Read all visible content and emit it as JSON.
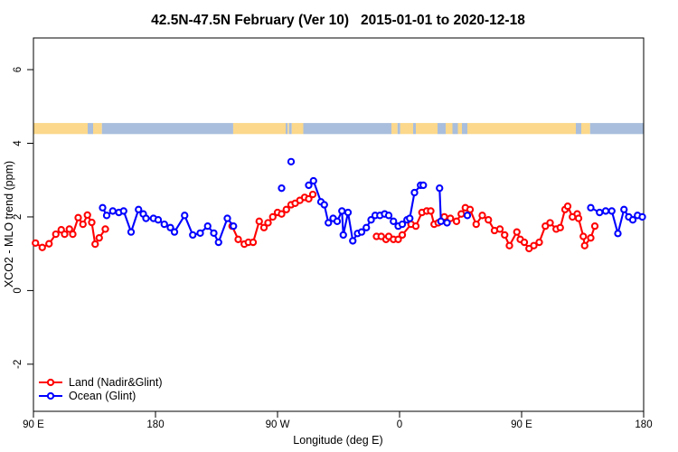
{
  "header": {
    "title_region": "42.5N-47.5N February (Ver 10)",
    "title_dates": "2015-01-01 to 2020-12-18"
  },
  "chart_data": {
    "type": "scatter",
    "title": "42.5N-47.5N February (Ver 10)  2015-01-01 to 2020-12-18",
    "xlabel": "Longitude (deg E)",
    "ylabel": "XCO2 - MLO trend (ppm)",
    "x_axis": {
      "min": 90,
      "max": 540,
      "note": "longitude axis wraps eastward from 90E through 180, 90W, 0, 90E to 180",
      "ticks": [
        {
          "pos": 90,
          "label": "90 E"
        },
        {
          "pos": 180,
          "label": "180"
        },
        {
          "pos": 270,
          "label": "90 W"
        },
        {
          "pos": 360,
          "label": "0"
        },
        {
          "pos": 450,
          "label": "90 E"
        },
        {
          "pos": 540,
          "label": "180"
        }
      ]
    },
    "y_axis": {
      "min": -3.28,
      "max": 6.86,
      "ticks": [
        {
          "pos": -2,
          "label": "-2"
        },
        {
          "pos": 0,
          "label": "0"
        },
        {
          "pos": 2,
          "label": "2"
        },
        {
          "pos": 4,
          "label": "4"
        },
        {
          "pos": 6,
          "label": "6"
        }
      ]
    },
    "grid": "off",
    "legend_position": "bottom-left",
    "map_strip": {
      "value_low": 4.25,
      "value_high": 4.55,
      "land_color": "#FBD88B",
      "ocean_color": "#A9BEDC",
      "segments": [
        {
          "from": 90,
          "to": 130,
          "type": "land"
        },
        {
          "from": 130,
          "to": 134,
          "type": "ocean"
        },
        {
          "from": 134,
          "to": 140.5,
          "type": "land"
        },
        {
          "from": 140.5,
          "to": 237.3,
          "type": "ocean"
        },
        {
          "from": 237.3,
          "to": 276,
          "type": "land"
        },
        {
          "from": 276,
          "to": 277.5,
          "type": "ocean"
        },
        {
          "from": 277.5,
          "to": 278.5,
          "type": "land"
        },
        {
          "from": 278.5,
          "to": 280.5,
          "type": "ocean"
        },
        {
          "from": 280.5,
          "to": 289,
          "type": "land"
        },
        {
          "from": 289,
          "to": 354,
          "type": "ocean"
        },
        {
          "from": 354,
          "to": 358.5,
          "type": "land"
        },
        {
          "from": 358.5,
          "to": 360.5,
          "type": "ocean"
        },
        {
          "from": 360.5,
          "to": 370,
          "type": "land"
        },
        {
          "from": 370,
          "to": 372,
          "type": "ocean"
        },
        {
          "from": 372,
          "to": 388,
          "type": "land"
        },
        {
          "from": 388,
          "to": 394,
          "type": "ocean"
        },
        {
          "from": 394,
          "to": 399,
          "type": "land"
        },
        {
          "from": 399,
          "to": 403,
          "type": "ocean"
        },
        {
          "from": 403,
          "to": 406,
          "type": "land"
        },
        {
          "from": 406,
          "to": 410,
          "type": "ocean"
        },
        {
          "from": 410,
          "to": 490,
          "type": "land"
        },
        {
          "from": 490,
          "to": 494,
          "type": "ocean"
        },
        {
          "from": 494,
          "to": 500.5,
          "type": "land"
        },
        {
          "from": 500.5,
          "to": 540,
          "type": "ocean"
        }
      ]
    },
    "series": [
      {
        "name": "Land (Nadir&Glint)",
        "color": "#FF0000",
        "marker": "open-circle",
        "segments": [
          [
            [
              91.5,
              1.29
            ],
            [
              96.5,
              1.17
            ],
            [
              101.5,
              1.27
            ],
            [
              106.5,
              1.53
            ],
            [
              110.5,
              1.65
            ],
            [
              113,
              1.53
            ],
            [
              116.5,
              1.67
            ],
            [
              119,
              1.53
            ],
            [
              123,
              1.98
            ],
            [
              126.5,
              1.8
            ],
            [
              129.8,
              2.05
            ],
            [
              133,
              1.85
            ],
            [
              135.5,
              1.26
            ],
            [
              138.5,
              1.43
            ],
            [
              143,
              1.67
            ]
          ],
          [
            [
              236.5,
              1.75
            ],
            [
              241,
              1.39
            ],
            [
              245.5,
              1.26
            ],
            [
              248.5,
              1.31
            ],
            [
              252,
              1.31
            ],
            [
              256.5,
              1.88
            ],
            [
              260,
              1.71
            ],
            [
              263,
              1.84
            ],
            [
              266.5,
              2.0
            ],
            [
              270,
              2.12
            ],
            [
              273,
              2.08
            ],
            [
              276.5,
              2.2
            ],
            [
              280,
              2.33
            ],
            [
              283,
              2.37
            ],
            [
              286.5,
              2.45
            ],
            [
              290,
              2.53
            ],
            [
              293,
              2.49
            ],
            [
              296,
              2.61
            ]
          ],
          [
            [
              343,
              1.47
            ],
            [
              346.5,
              1.47
            ],
            [
              350,
              1.39
            ],
            [
              352,
              1.47
            ],
            [
              355.5,
              1.39
            ],
            [
              359,
              1.39
            ],
            [
              362,
              1.51
            ],
            [
              368.5,
              1.8
            ],
            [
              372,
              1.75
            ],
            [
              376.5,
              2.12
            ],
            [
              380,
              2.16
            ],
            [
              383,
              2.16
            ],
            [
              385.5,
              1.8
            ],
            [
              388.5,
              1.84
            ],
            [
              393,
              2.0
            ],
            [
              397.5,
              1.96
            ],
            [
              402,
              1.88
            ],
            [
              405.5,
              2.08
            ],
            [
              408.5,
              2.25
            ],
            [
              412,
              2.2
            ],
            [
              416.5,
              1.8
            ],
            [
              421,
              2.04
            ],
            [
              425.5,
              1.92
            ],
            [
              430,
              1.63
            ],
            [
              434,
              1.67
            ],
            [
              437.5,
              1.51
            ],
            [
              441,
              1.22
            ],
            [
              446.5,
              1.59
            ],
            [
              449,
              1.39
            ],
            [
              452,
              1.31
            ],
            [
              455.5,
              1.14
            ],
            [
              459,
              1.22
            ],
            [
              463,
              1.31
            ],
            [
              467.5,
              1.75
            ],
            [
              471,
              1.84
            ],
            [
              475.5,
              1.67
            ],
            [
              478.5,
              1.71
            ],
            [
              482,
              2.2
            ],
            [
              484,
              2.29
            ],
            [
              487.5,
              2.0
            ],
            [
              491,
              2.08
            ],
            [
              492,
              1.96
            ],
            [
              495.5,
              1.47
            ],
            [
              496.5,
              1.22
            ],
            [
              501,
              1.43
            ],
            [
              504,
              1.75
            ]
          ]
        ]
      },
      {
        "name": "Ocean (Glint)",
        "color": "#0000FF",
        "marker": "open-circle",
        "segments": [
          [
            [
              141,
              2.25
            ],
            [
              144,
              2.04
            ],
            [
              148.5,
              2.16
            ],
            [
              153,
              2.12
            ],
            [
              156.5,
              2.16
            ],
            [
              162,
              1.59
            ],
            [
              167.5,
              2.2
            ],
            [
              171,
              2.08
            ],
            [
              173,
              1.96
            ],
            [
              178.5,
              1.96
            ],
            [
              182,
              1.92
            ],
            [
              186.5,
              1.8
            ],
            [
              191,
              1.71
            ],
            [
              194,
              1.59
            ],
            [
              201.5,
              2.04
            ],
            [
              207.5,
              1.51
            ],
            [
              213,
              1.56
            ],
            [
              218.5,
              1.75
            ],
            [
              223,
              1.56
            ],
            [
              226.5,
              1.31
            ],
            [
              233,
              1.96
            ],
            [
              237.5,
              1.75
            ]
          ],
          [
            [
              273,
              2.78
            ]
          ],
          [
            [
              280,
              3.5
            ]
          ],
          [
            [
              293,
              2.86
            ],
            [
              296.5,
              2.98
            ],
            [
              302,
              2.41
            ],
            [
              304.5,
              2.33
            ],
            [
              307.5,
              1.84
            ],
            [
              311,
              1.96
            ],
            [
              314,
              1.88
            ],
            [
              317.5,
              2.16
            ],
            [
              318.5,
              1.51
            ],
            [
              322,
              2.12
            ],
            [
              325.5,
              1.35
            ],
            [
              329,
              1.55
            ],
            [
              332,
              1.59
            ],
            [
              335.5,
              1.71
            ],
            [
              339,
              1.92
            ],
            [
              342,
              2.04
            ],
            [
              345.5,
              2.04
            ],
            [
              349,
              2.08
            ],
            [
              352,
              2.04
            ],
            [
              355.5,
              1.88
            ],
            [
              359,
              1.75
            ],
            [
              362,
              1.8
            ],
            [
              365.5,
              1.92
            ],
            [
              367.5,
              1.96
            ],
            [
              371,
              2.66
            ],
            [
              375.5,
              2.86
            ],
            [
              377.5,
              2.86
            ]
          ],
          [
            [
              389.5,
              2.78
            ],
            [
              390.5,
              1.88
            ],
            [
              395,
              1.84
            ]
          ],
          [
            [
              410,
              2.04
            ]
          ],
          [
            [
              501,
              2.25
            ],
            [
              507.5,
              2.12
            ],
            [
              512,
              2.16
            ],
            [
              516.5,
              2.16
            ],
            [
              521,
              1.55
            ],
            [
              525.5,
              2.2
            ],
            [
              529,
              2.0
            ],
            [
              532,
              1.92
            ],
            [
              535.5,
              2.04
            ],
            [
              539,
              2.0
            ]
          ]
        ]
      }
    ]
  },
  "legend": {
    "entries": [
      {
        "label": "Land (Nadir&Glint)",
        "color": "#FF0000"
      },
      {
        "label": "Ocean (Glint)",
        "color": "#0000FF"
      }
    ]
  }
}
